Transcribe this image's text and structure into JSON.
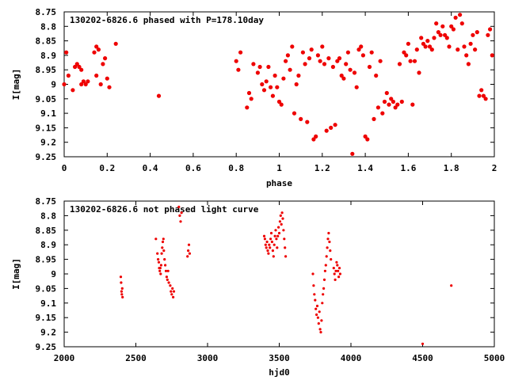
{
  "colors": {
    "points": "#ee0000",
    "axes": "#000000",
    "background": "#ffffff"
  },
  "chart_data": [
    {
      "type": "scatter",
      "title": "130202-6826.6 phased with P=178.10day",
      "xlabel": "phase",
      "ylabel": "I[mag]",
      "xlim": [
        0,
        2
      ],
      "ylim": [
        8.75,
        9.25
      ],
      "y_inverted": true,
      "grid": false,
      "x_ticks": [
        "0",
        "0.2",
        "0.4",
        "0.6",
        "0.8",
        "1",
        "1.2",
        "1.4",
        "1.6",
        "1.8",
        "2"
      ],
      "y_ticks": [
        "8.75",
        "8.8",
        "8.85",
        "8.9",
        "8.95",
        "9",
        "9.05",
        "9.1",
        "9.15",
        "9.2",
        "9.25"
      ],
      "points": [
        [
          0.0,
          9.0
        ],
        [
          0.01,
          8.89
        ],
        [
          0.02,
          8.97
        ],
        [
          0.04,
          9.02
        ],
        [
          0.05,
          8.94
        ],
        [
          0.06,
          8.93
        ],
        [
          0.07,
          8.94
        ],
        [
          0.08,
          8.95
        ],
        [
          0.08,
          9.0
        ],
        [
          0.09,
          8.99
        ],
        [
          0.1,
          9.0
        ],
        [
          0.11,
          8.99
        ],
        [
          0.14,
          8.89
        ],
        [
          0.15,
          8.87
        ],
        [
          0.15,
          8.97
        ],
        [
          0.16,
          8.88
        ],
        [
          0.17,
          9.0
        ],
        [
          0.18,
          8.93
        ],
        [
          0.19,
          8.91
        ],
        [
          0.2,
          8.98
        ],
        [
          0.21,
          9.01
        ],
        [
          0.24,
          8.86
        ],
        [
          0.44,
          9.04
        ],
        [
          0.8,
          8.92
        ],
        [
          0.81,
          8.95
        ],
        [
          0.82,
          8.89
        ],
        [
          0.85,
          9.08
        ],
        [
          0.86,
          9.03
        ],
        [
          0.87,
          9.05
        ],
        [
          0.88,
          8.93
        ],
        [
          0.9,
          8.96
        ],
        [
          0.91,
          8.94
        ],
        [
          0.92,
          9.0
        ],
        [
          0.93,
          9.02
        ],
        [
          0.94,
          8.99
        ],
        [
          0.95,
          8.94
        ],
        [
          0.96,
          9.01
        ],
        [
          0.97,
          9.04
        ],
        [
          0.98,
          8.97
        ],
        [
          0.99,
          9.01
        ],
        [
          1.0,
          9.06
        ],
        [
          1.01,
          9.07
        ],
        [
          1.02,
          8.98
        ],
        [
          1.03,
          8.92
        ],
        [
          1.04,
          8.9
        ],
        [
          1.05,
          8.95
        ],
        [
          1.06,
          8.87
        ],
        [
          1.07,
          9.1
        ],
        [
          1.08,
          9.0
        ],
        [
          1.09,
          8.97
        ],
        [
          1.1,
          9.12
        ],
        [
          1.11,
          8.89
        ],
        [
          1.12,
          8.93
        ],
        [
          1.13,
          9.13
        ],
        [
          1.14,
          8.91
        ],
        [
          1.15,
          8.88
        ],
        [
          1.16,
          9.19
        ],
        [
          1.17,
          9.18
        ],
        [
          1.18,
          8.9
        ],
        [
          1.19,
          8.92
        ],
        [
          1.2,
          8.87
        ],
        [
          1.21,
          8.93
        ],
        [
          1.22,
          9.16
        ],
        [
          1.23,
          8.91
        ],
        [
          1.24,
          9.15
        ],
        [
          1.25,
          8.94
        ],
        [
          1.26,
          9.14
        ],
        [
          1.27,
          8.92
        ],
        [
          1.28,
          8.91
        ],
        [
          1.29,
          8.97
        ],
        [
          1.3,
          8.98
        ],
        [
          1.31,
          8.93
        ],
        [
          1.32,
          8.89
        ],
        [
          1.33,
          8.95
        ],
        [
          1.34,
          9.24
        ],
        [
          1.35,
          8.96
        ],
        [
          1.36,
          9.01
        ],
        [
          1.37,
          8.88
        ],
        [
          1.38,
          8.87
        ],
        [
          1.39,
          8.9
        ],
        [
          1.4,
          9.18
        ],
        [
          1.41,
          9.19
        ],
        [
          1.42,
          8.94
        ],
        [
          1.43,
          8.89
        ],
        [
          1.44,
          9.12
        ],
        [
          1.45,
          8.97
        ],
        [
          1.46,
          9.08
        ],
        [
          1.47,
          8.92
        ],
        [
          1.48,
          9.1
        ],
        [
          1.49,
          9.06
        ],
        [
          1.5,
          9.03
        ],
        [
          1.51,
          9.07
        ],
        [
          1.52,
          9.05
        ],
        [
          1.53,
          9.06
        ],
        [
          1.54,
          9.08
        ],
        [
          1.55,
          9.07
        ],
        [
          1.56,
          8.93
        ],
        [
          1.57,
          9.06
        ],
        [
          1.58,
          8.89
        ],
        [
          1.59,
          8.9
        ],
        [
          1.6,
          8.86
        ],
        [
          1.61,
          8.92
        ],
        [
          1.62,
          9.07
        ],
        [
          1.63,
          8.92
        ],
        [
          1.64,
          8.88
        ],
        [
          1.65,
          8.96
        ],
        [
          1.66,
          8.84
        ],
        [
          1.67,
          8.86
        ],
        [
          1.68,
          8.87
        ],
        [
          1.69,
          8.85
        ],
        [
          1.7,
          8.87
        ],
        [
          1.71,
          8.88
        ],
        [
          1.72,
          8.84
        ],
        [
          1.73,
          8.79
        ],
        [
          1.74,
          8.82
        ],
        [
          1.75,
          8.83
        ],
        [
          1.76,
          8.8
        ],
        [
          1.77,
          8.83
        ],
        [
          1.78,
          8.84
        ],
        [
          1.79,
          8.87
        ],
        [
          1.8,
          8.8
        ],
        [
          1.81,
          8.81
        ],
        [
          1.82,
          8.77
        ],
        [
          1.83,
          8.88
        ],
        [
          1.84,
          8.76
        ],
        [
          1.85,
          8.79
        ],
        [
          1.86,
          8.87
        ],
        [
          1.87,
          8.9
        ],
        [
          1.88,
          8.93
        ],
        [
          1.89,
          8.86
        ],
        [
          1.9,
          8.83
        ],
        [
          1.91,
          8.88
        ],
        [
          1.92,
          8.82
        ],
        [
          1.93,
          9.04
        ],
        [
          1.94,
          9.02
        ],
        [
          1.95,
          9.04
        ],
        [
          1.96,
          9.05
        ],
        [
          1.97,
          8.83
        ],
        [
          1.98,
          8.81
        ],
        [
          1.99,
          8.9
        ]
      ]
    },
    {
      "type": "scatter",
      "title": "130202-6826.6 not phased light curve",
      "xlabel": "hjd0",
      "ylabel": "I[mag]",
      "xlim": [
        2000,
        5000
      ],
      "ylim": [
        8.75,
        9.25
      ],
      "y_inverted": true,
      "grid": false,
      "x_ticks": [
        "2000",
        "2500",
        "3000",
        "3500",
        "4000",
        "4500",
        "5000"
      ],
      "y_ticks": [
        "8.75",
        "8.8",
        "8.85",
        "8.9",
        "8.95",
        "9",
        "9.05",
        "9.1",
        "9.15",
        "9.2",
        "9.25"
      ],
      "points": [
        [
          2395,
          9.01
        ],
        [
          2397,
          9.03
        ],
        [
          2400,
          9.06
        ],
        [
          2402,
          9.07
        ],
        [
          2405,
          9.05
        ],
        [
          2407,
          9.08
        ],
        [
          2640,
          8.88
        ],
        [
          2650,
          8.93
        ],
        [
          2655,
          8.95
        ],
        [
          2660,
          8.96
        ],
        [
          2663,
          8.98
        ],
        [
          2667,
          8.99
        ],
        [
          2670,
          8.98
        ],
        [
          2673,
          9.0
        ],
        [
          2676,
          8.97
        ],
        [
          2680,
          8.93
        ],
        [
          2684,
          8.91
        ],
        [
          2688,
          8.89
        ],
        [
          2692,
          8.88
        ],
        [
          2695,
          8.92
        ],
        [
          2700,
          8.95
        ],
        [
          2705,
          8.97
        ],
        [
          2710,
          8.99
        ],
        [
          2715,
          9.01
        ],
        [
          2720,
          9.02
        ],
        [
          2725,
          8.99
        ],
        [
          2730,
          9.03
        ],
        [
          2740,
          9.04
        ],
        [
          2745,
          9.06
        ],
        [
          2750,
          9.07
        ],
        [
          2755,
          9.05
        ],
        [
          2760,
          9.08
        ],
        [
          2765,
          9.06
        ],
        [
          2800,
          8.77
        ],
        [
          2806,
          8.8
        ],
        [
          2812,
          8.82
        ],
        [
          2818,
          8.79
        ],
        [
          2860,
          8.94
        ],
        [
          2865,
          8.92
        ],
        [
          2870,
          8.9
        ],
        [
          2875,
          8.93
        ],
        [
          3395,
          8.87
        ],
        [
          3400,
          8.88
        ],
        [
          3405,
          8.9
        ],
        [
          3410,
          8.91
        ],
        [
          3415,
          8.89
        ],
        [
          3420,
          8.92
        ],
        [
          3425,
          8.93
        ],
        [
          3430,
          8.9
        ],
        [
          3435,
          8.91
        ],
        [
          3440,
          8.88
        ],
        [
          3445,
          8.86
        ],
        [
          3450,
          8.89
        ],
        [
          3455,
          8.92
        ],
        [
          3460,
          8.94
        ],
        [
          3465,
          8.9
        ],
        [
          3470,
          8.87
        ],
        [
          3475,
          8.85
        ],
        [
          3480,
          8.88
        ],
        [
          3485,
          8.91
        ],
        [
          3490,
          8.87
        ],
        [
          3495,
          8.84
        ],
        [
          3500,
          8.86
        ],
        [
          3505,
          8.82
        ],
        [
          3510,
          8.8
        ],
        [
          3515,
          8.83
        ],
        [
          3520,
          8.79
        ],
        [
          3525,
          8.81
        ],
        [
          3530,
          8.85
        ],
        [
          3535,
          8.88
        ],
        [
          3540,
          8.91
        ],
        [
          3545,
          8.94
        ],
        [
          3735,
          9.0
        ],
        [
          3740,
          9.04
        ],
        [
          3745,
          9.07
        ],
        [
          3750,
          9.09
        ],
        [
          3755,
          9.12
        ],
        [
          3760,
          9.14
        ],
        [
          3765,
          9.11
        ],
        [
          3770,
          9.15
        ],
        [
          3775,
          9.17
        ],
        [
          3780,
          9.13
        ],
        [
          3785,
          9.19
        ],
        [
          3790,
          9.2
        ],
        [
          3795,
          9.16
        ],
        [
          3800,
          9.1
        ],
        [
          3805,
          9.07
        ],
        [
          3810,
          9.05
        ],
        [
          3815,
          9.02
        ],
        [
          3820,
          8.99
        ],
        [
          3825,
          8.97
        ],
        [
          3830,
          8.94
        ],
        [
          3835,
          8.91
        ],
        [
          3840,
          8.88
        ],
        [
          3845,
          8.86
        ],
        [
          3850,
          8.89
        ],
        [
          3855,
          8.92
        ],
        [
          3860,
          8.95
        ],
        [
          3880,
          8.98
        ],
        [
          3885,
          9.0
        ],
        [
          3890,
          9.02
        ],
        [
          3895,
          8.99
        ],
        [
          3900,
          8.96
        ],
        [
          3905,
          8.97
        ],
        [
          3910,
          8.99
        ],
        [
          3915,
          9.01
        ],
        [
          3920,
          8.98
        ],
        [
          3925,
          9.0
        ],
        [
          4500,
          9.24
        ],
        [
          4700,
          9.04
        ]
      ]
    }
  ]
}
